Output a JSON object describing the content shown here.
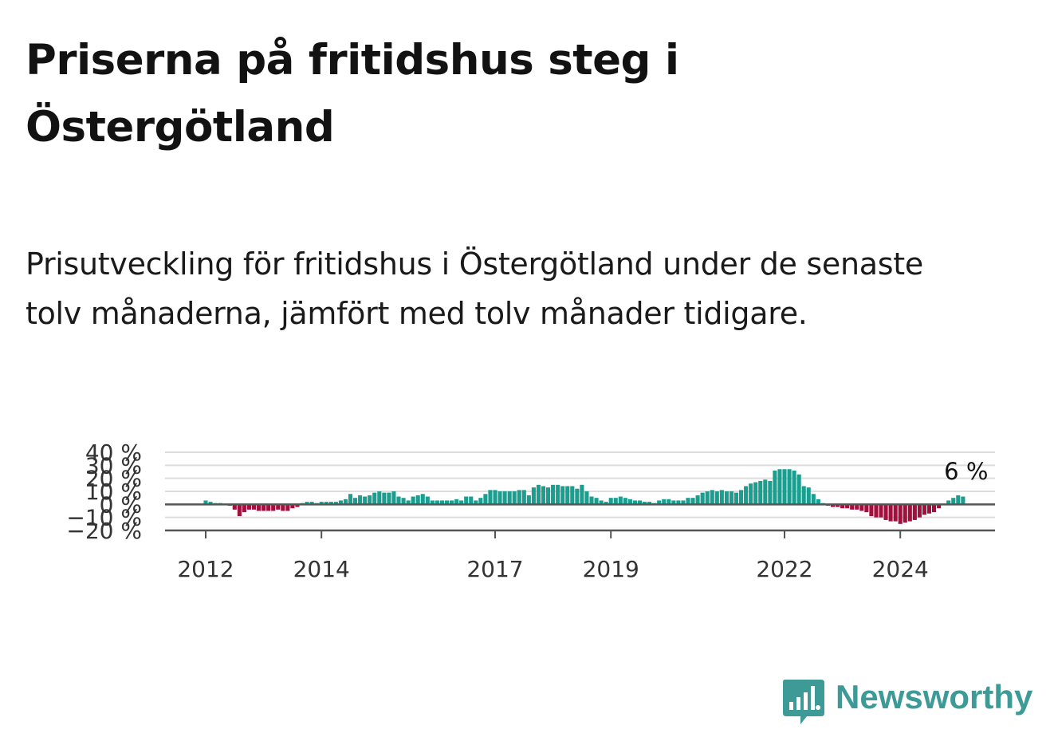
{
  "title": "Priserna på fritidshus steg i Östergötland",
  "subtitle": "Prisutveckling för fritidshus i Östergötland under de senaste tolv månaderna, jämfört med tolv månader tidigare.",
  "brand": "Newsworthy",
  "colors": {
    "positive": "#1a9e8f",
    "negative": "#a3103d",
    "grid": "#dddddd",
    "baseline": "#555555",
    "brand": "#3d9a96"
  },
  "chart_data": {
    "type": "bar",
    "ylim": [
      -20,
      40
    ],
    "y_ticks": [
      {
        "value": 40,
        "label": "40 %"
      },
      {
        "value": 30,
        "label": "30 %"
      },
      {
        "value": 20,
        "label": "20 %"
      },
      {
        "value": 10,
        "label": "10 %"
      },
      {
        "value": 0,
        "label": "0 %"
      },
      {
        "value": -10,
        "label": "−10 %"
      },
      {
        "value": -20,
        "label": "−20 %"
      }
    ],
    "x_ticks": [
      "2012",
      "2014",
      "2017",
      "2019",
      "2022",
      "2024"
    ],
    "end_label": "6 %",
    "grid": true,
    "start": "2012-01",
    "values": [
      3,
      2,
      1,
      1,
      0,
      -1,
      -4,
      -9,
      -6,
      -4,
      -4,
      -5,
      -5,
      -5,
      -5,
      -4,
      -5,
      -5,
      -3,
      -2,
      1,
      2,
      2,
      1,
      2,
      2,
      2,
      2,
      3,
      4,
      8,
      5,
      7,
      6,
      7,
      9,
      10,
      9,
      9,
      10,
      6,
      5,
      3,
      6,
      7,
      8,
      6,
      3,
      3,
      3,
      3,
      3,
      4,
      3,
      6,
      6,
      3,
      5,
      8,
      11,
      11,
      10,
      10,
      10,
      10,
      11,
      11,
      7,
      13,
      15,
      14,
      13,
      15,
      15,
      14,
      14,
      14,
      12,
      15,
      10,
      6,
      5,
      3,
      2,
      5,
      5,
      6,
      5,
      4,
      3,
      3,
      2,
      2,
      1,
      3,
      4,
      4,
      3,
      3,
      3,
      5,
      5,
      7,
      9,
      10,
      11,
      10,
      11,
      10,
      10,
      9,
      11,
      14,
      16,
      17,
      18,
      19,
      18,
      26,
      27,
      27,
      27,
      26,
      23,
      14,
      13,
      8,
      4,
      1,
      -1,
      -2,
      -2,
      -3,
      -3,
      -4,
      -4,
      -5,
      -6,
      -9,
      -10,
      -10,
      -12,
      -13,
      -13,
      -15,
      -14,
      -13,
      -12,
      -10,
      -8,
      -7,
      -6,
      -3,
      0,
      3,
      5,
      7,
      6
    ]
  }
}
